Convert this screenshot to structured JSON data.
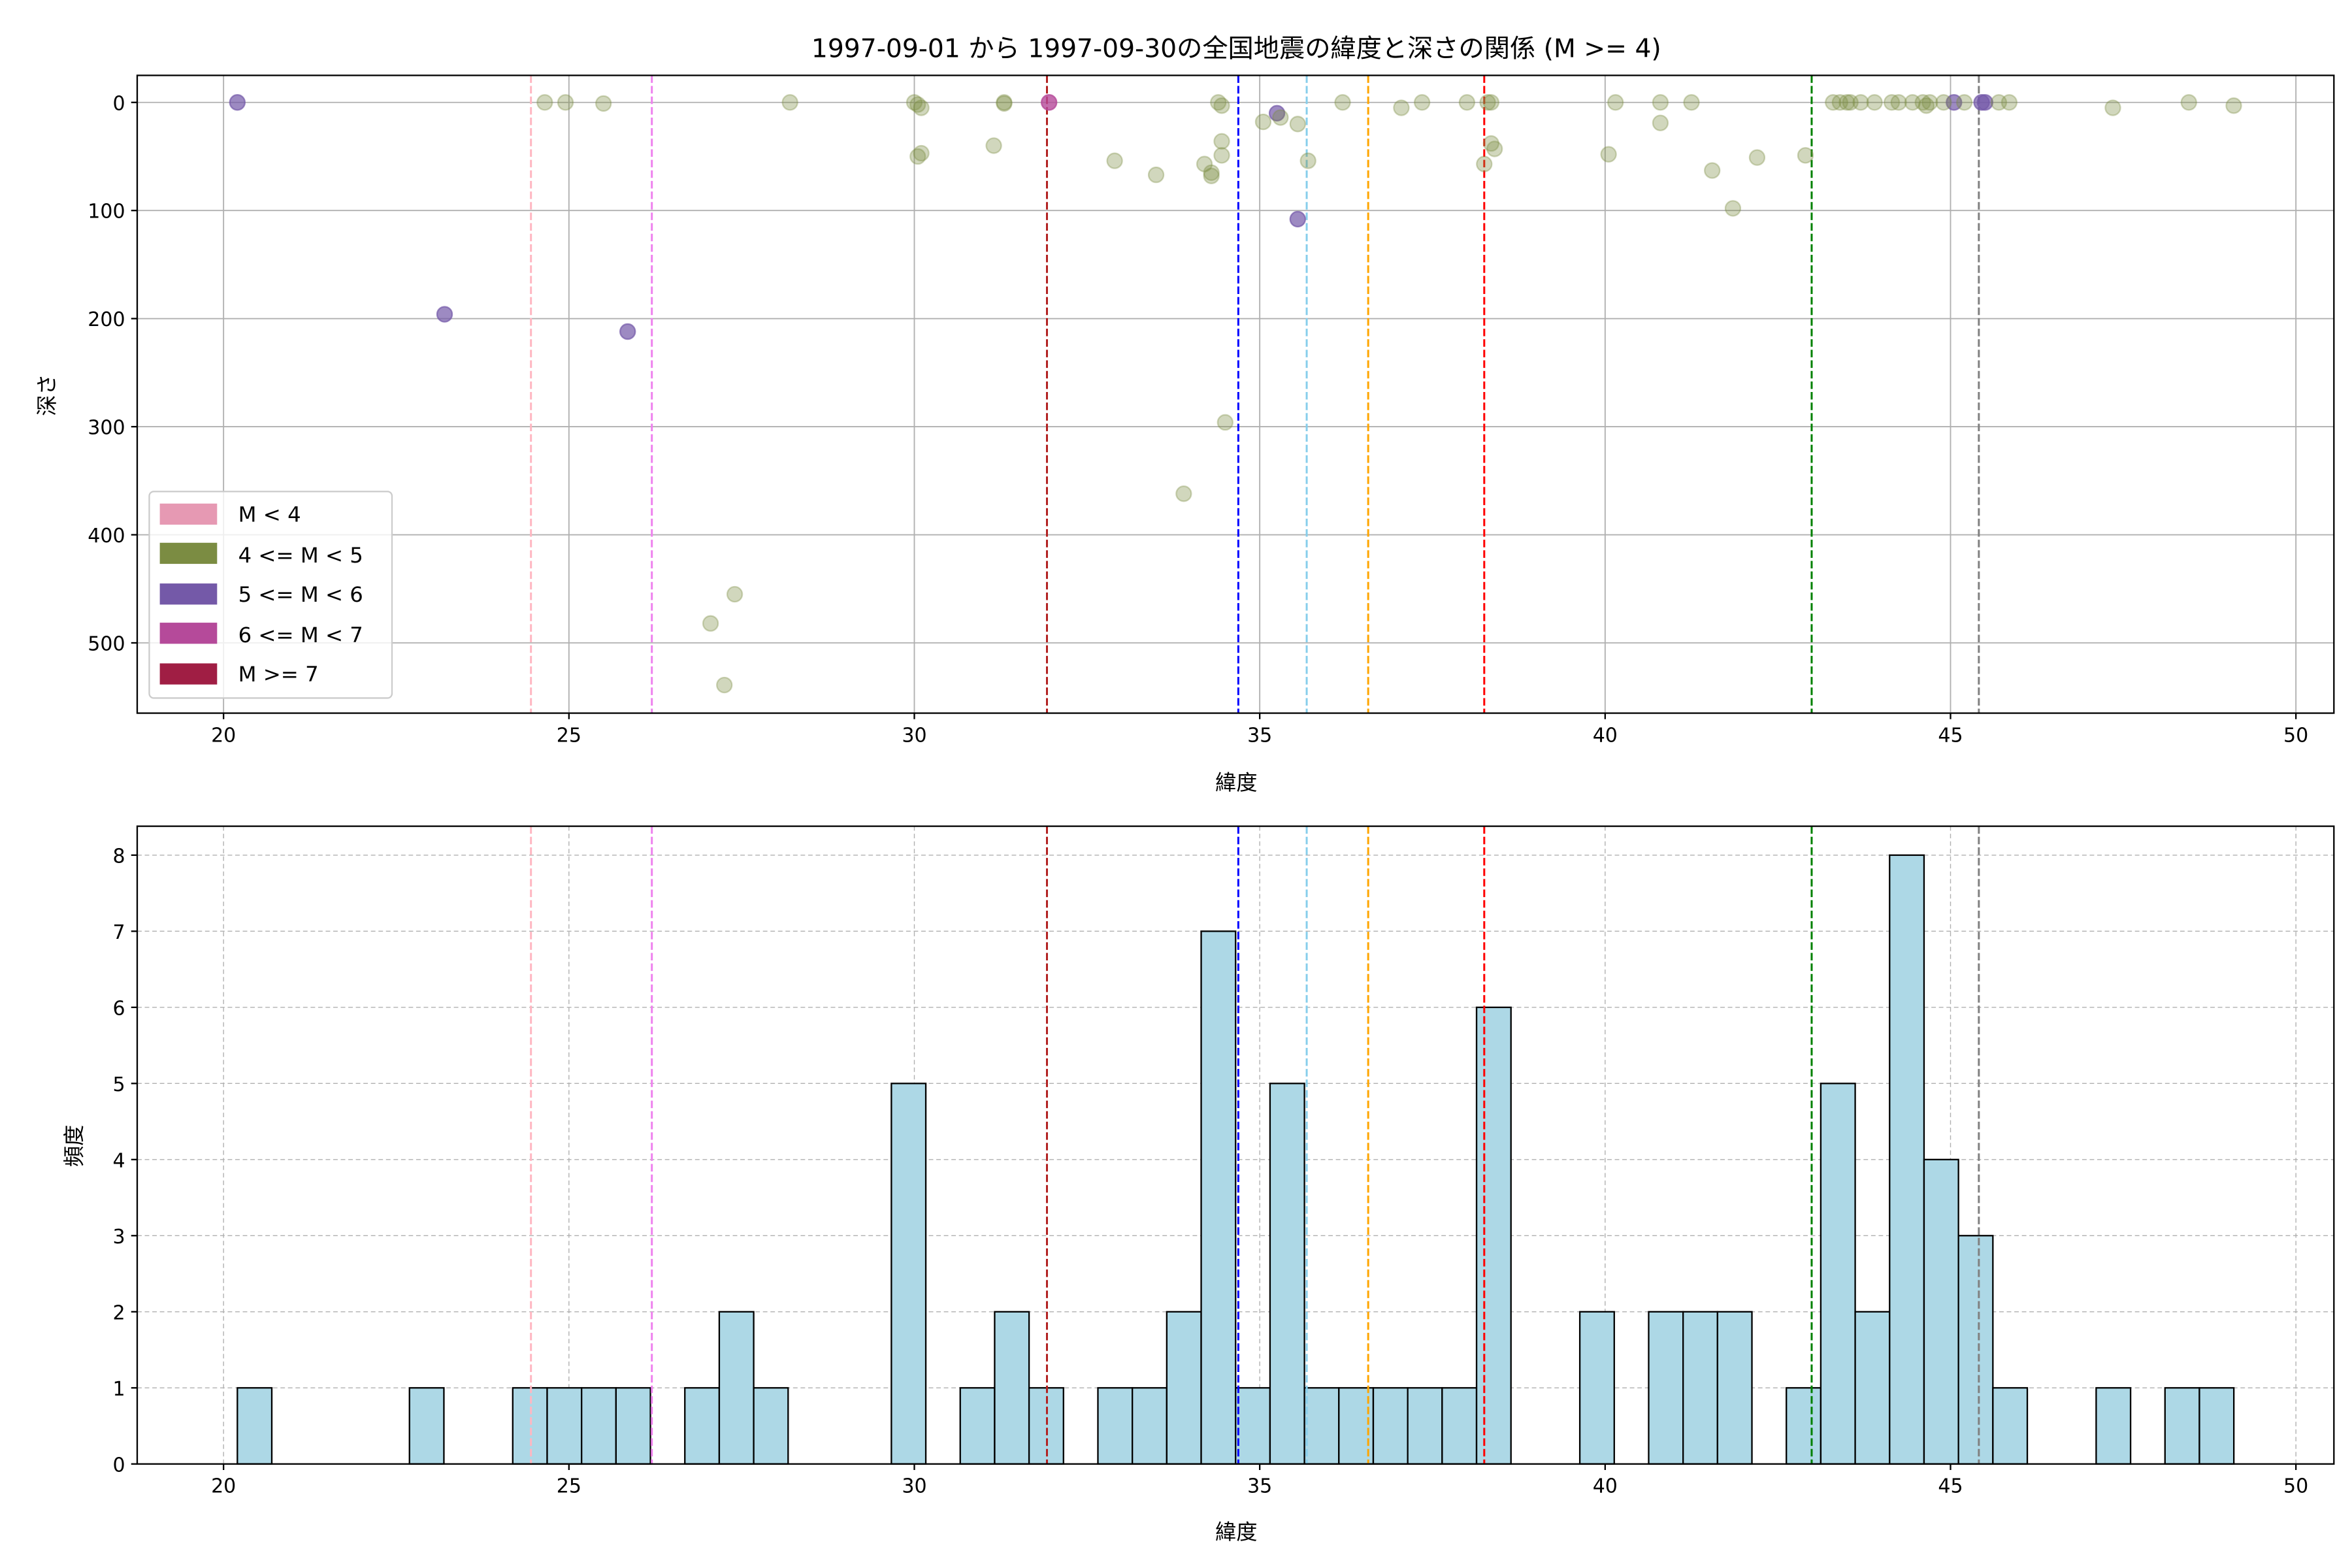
{
  "chart_data": [
    {
      "type": "scatter",
      "title": "1997-09-01 から 1997-09-30の全国地震の緯度と深さの関係 (M >= 4)",
      "xlabel": "緯度",
      "ylabel": "深さ",
      "xlim": [
        18.75,
        50.55
      ],
      "ylim": [
        565,
        -25
      ],
      "y_inverted": true,
      "xticks": [
        20,
        25,
        30,
        35,
        40,
        45,
        50
      ],
      "yticks": [
        0,
        100,
        200,
        300,
        400,
        500
      ],
      "grid": true,
      "legend_position": "lower-left",
      "legend": [
        {
          "label": "M < 4",
          "color": "#e699b3"
        },
        {
          "label": "4 <= M < 5",
          "color": "#7b8c42"
        },
        {
          "label": "5 <= M < 6",
          "color": "#7459a8"
        },
        {
          "label": "6 <= M < 7",
          "color": "#b54a9a"
        },
        {
          "label": "M >= 7",
          "color": "#a01e44"
        }
      ],
      "classes": {
        "m4_5": {
          "color": "#7b8c42",
          "alpha": 0.35
        },
        "m5_6": {
          "color": "#7459a8",
          "alpha": 0.7
        },
        "m6_7": {
          "color": "#b54a9a",
          "alpha": 0.8
        }
      },
      "points": [
        {
          "lat": 20.2,
          "depth": 0,
          "c": "m5_6"
        },
        {
          "lat": 23.2,
          "depth": 196,
          "c": "m5_6"
        },
        {
          "lat": 25.85,
          "depth": 212,
          "c": "m5_6"
        },
        {
          "lat": 35.25,
          "depth": 10,
          "c": "m5_6"
        },
        {
          "lat": 35.55,
          "depth": 108,
          "c": "m5_6"
        },
        {
          "lat": 45.05,
          "depth": 0,
          "c": "m5_6"
        },
        {
          "lat": 45.45,
          "depth": 0,
          "c": "m5_6"
        },
        {
          "lat": 45.5,
          "depth": 0,
          "c": "m5_6"
        },
        {
          "lat": 31.95,
          "depth": 0,
          "c": "m6_7"
        },
        {
          "lat": 24.65,
          "depth": 0,
          "c": "m4_5"
        },
        {
          "lat": 24.95,
          "depth": 0,
          "c": "m4_5"
        },
        {
          "lat": 25.5,
          "depth": 1,
          "c": "m4_5"
        },
        {
          "lat": 28.2,
          "depth": 0,
          "c": "m4_5"
        },
        {
          "lat": 30.0,
          "depth": 0,
          "c": "m4_5"
        },
        {
          "lat": 30.05,
          "depth": 2,
          "c": "m4_5"
        },
        {
          "lat": 30.1,
          "depth": 5,
          "c": "m4_5"
        },
        {
          "lat": 30.05,
          "depth": 50,
          "c": "m4_5"
        },
        {
          "lat": 30.1,
          "depth": 47,
          "c": "m4_5"
        },
        {
          "lat": 31.15,
          "depth": 40,
          "c": "m4_5"
        },
        {
          "lat": 31.3,
          "depth": 0,
          "c": "m4_5"
        },
        {
          "lat": 31.3,
          "depth": 1,
          "c": "m4_5"
        },
        {
          "lat": 32.9,
          "depth": 54,
          "c": "m4_5"
        },
        {
          "lat": 33.5,
          "depth": 67,
          "c": "m4_5"
        },
        {
          "lat": 34.2,
          "depth": 57,
          "c": "m4_5"
        },
        {
          "lat": 34.3,
          "depth": 65,
          "c": "m4_5"
        },
        {
          "lat": 34.3,
          "depth": 68,
          "c": "m4_5"
        },
        {
          "lat": 34.4,
          "depth": 0,
          "c": "m4_5"
        },
        {
          "lat": 34.45,
          "depth": 3,
          "c": "m4_5"
        },
        {
          "lat": 34.45,
          "depth": 36,
          "c": "m4_5"
        },
        {
          "lat": 34.45,
          "depth": 49,
          "c": "m4_5"
        },
        {
          "lat": 34.5,
          "depth": 296,
          "c": "m4_5"
        },
        {
          "lat": 33.9,
          "depth": 362,
          "c": "m4_5"
        },
        {
          "lat": 27.4,
          "depth": 455,
          "c": "m4_5"
        },
        {
          "lat": 27.05,
          "depth": 482,
          "c": "m4_5"
        },
        {
          "lat": 27.25,
          "depth": 539,
          "c": "m4_5"
        },
        {
          "lat": 35.05,
          "depth": 18,
          "c": "m4_5"
        },
        {
          "lat": 35.3,
          "depth": 14,
          "c": "m4_5"
        },
        {
          "lat": 35.55,
          "depth": 20,
          "c": "m4_5"
        },
        {
          "lat": 35.7,
          "depth": 54,
          "c": "m4_5"
        },
        {
          "lat": 36.2,
          "depth": 0,
          "c": "m4_5"
        },
        {
          "lat": 37.05,
          "depth": 5,
          "c": "m4_5"
        },
        {
          "lat": 37.35,
          "depth": 0,
          "c": "m4_5"
        },
        {
          "lat": 38.0,
          "depth": 0,
          "c": "m4_5"
        },
        {
          "lat": 38.3,
          "depth": 0,
          "c": "m4_5"
        },
        {
          "lat": 38.35,
          "depth": 0,
          "c": "m4_5"
        },
        {
          "lat": 38.25,
          "depth": 57,
          "c": "m4_5"
        },
        {
          "lat": 38.35,
          "depth": 38,
          "c": "m4_5"
        },
        {
          "lat": 38.4,
          "depth": 43,
          "c": "m4_5"
        },
        {
          "lat": 40.05,
          "depth": 48,
          "c": "m4_5"
        },
        {
          "lat": 40.15,
          "depth": 0,
          "c": "m4_5"
        },
        {
          "lat": 40.8,
          "depth": 0,
          "c": "m4_5"
        },
        {
          "lat": 40.8,
          "depth": 19,
          "c": "m4_5"
        },
        {
          "lat": 41.25,
          "depth": 0,
          "c": "m4_5"
        },
        {
          "lat": 41.55,
          "depth": 63,
          "c": "m4_5"
        },
        {
          "lat": 41.85,
          "depth": 98,
          "c": "m4_5"
        },
        {
          "lat": 42.2,
          "depth": 51,
          "c": "m4_5"
        },
        {
          "lat": 42.9,
          "depth": 49,
          "c": "m4_5"
        },
        {
          "lat": 43.3,
          "depth": 0,
          "c": "m4_5"
        },
        {
          "lat": 43.4,
          "depth": 0,
          "c": "m4_5"
        },
        {
          "lat": 43.5,
          "depth": 0,
          "c": "m4_5"
        },
        {
          "lat": 43.55,
          "depth": 0,
          "c": "m4_5"
        },
        {
          "lat": 43.7,
          "depth": 0,
          "c": "m4_5"
        },
        {
          "lat": 43.9,
          "depth": 0,
          "c": "m4_5"
        },
        {
          "lat": 44.15,
          "depth": 0,
          "c": "m4_5"
        },
        {
          "lat": 44.25,
          "depth": 0,
          "c": "m4_5"
        },
        {
          "lat": 44.45,
          "depth": 0,
          "c": "m4_5"
        },
        {
          "lat": 44.6,
          "depth": 0,
          "c": "m4_5"
        },
        {
          "lat": 44.7,
          "depth": 0,
          "c": "m4_5"
        },
        {
          "lat": 44.65,
          "depth": 3,
          "c": "m4_5"
        },
        {
          "lat": 44.9,
          "depth": 0,
          "c": "m4_5"
        },
        {
          "lat": 45.2,
          "depth": 0,
          "c": "m4_5"
        },
        {
          "lat": 45.7,
          "depth": 0,
          "c": "m4_5"
        },
        {
          "lat": 45.85,
          "depth": 0,
          "c": "m4_5"
        },
        {
          "lat": 47.35,
          "depth": 5,
          "c": "m4_5"
        },
        {
          "lat": 48.45,
          "depth": 0,
          "c": "m4_5"
        },
        {
          "lat": 49.1,
          "depth": 3,
          "c": "m4_5"
        }
      ]
    },
    {
      "type": "bar",
      "subtype": "histogram",
      "xlabel": "緯度",
      "ylabel": "頻度",
      "xlim": [
        18.75,
        50.55
      ],
      "ylim": [
        0,
        8.38
      ],
      "xticks": [
        20,
        25,
        30,
        35,
        40,
        45,
        50
      ],
      "yticks": [
        0,
        1,
        2,
        3,
        4,
        5,
        6,
        7,
        8
      ],
      "grid": "dashed",
      "bar_color": "#add8e6",
      "bin_start": 20.2,
      "bin_width": 0.4983,
      "counts": [
        1,
        0,
        0,
        0,
        0,
        1,
        0,
        0,
        1,
        1,
        1,
        1,
        0,
        1,
        2,
        1,
        0,
        0,
        0,
        5,
        0,
        1,
        2,
        1,
        0,
        1,
        1,
        2,
        7,
        1,
        5,
        1,
        1,
        1,
        1,
        1,
        6,
        0,
        0,
        2,
        0,
        2,
        2,
        2,
        0,
        1,
        5,
        2,
        8,
        4,
        3,
        1,
        0,
        0,
        1,
        0,
        1,
        1
      ]
    }
  ],
  "reference_lines": [
    {
      "lat": 24.45,
      "color": "#ffb6c1"
    },
    {
      "lat": 26.2,
      "color": "#ee82ee"
    },
    {
      "lat": 31.92,
      "color": "#b22222"
    },
    {
      "lat": 34.69,
      "color": "#0000ff"
    },
    {
      "lat": 35.68,
      "color": "#87ceeb"
    },
    {
      "lat": 36.57,
      "color": "#ffa500"
    },
    {
      "lat": 38.25,
      "color": "#ff0000"
    },
    {
      "lat": 42.99,
      "color": "#008000"
    },
    {
      "lat": 45.41,
      "color": "#808080"
    }
  ]
}
